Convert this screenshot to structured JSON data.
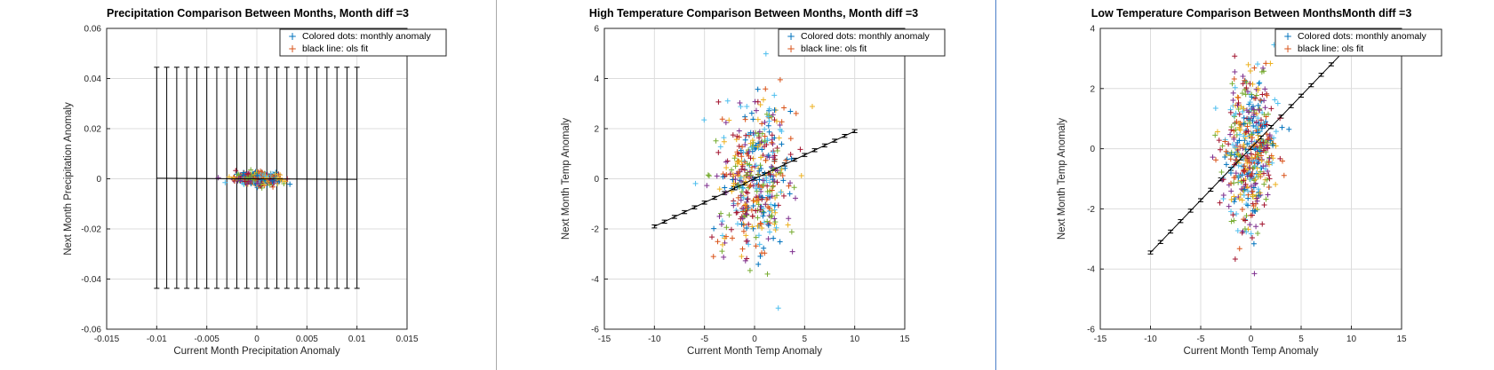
{
  "colors": {
    "series_palette": [
      "#0072BD",
      "#D95319",
      "#EDB120",
      "#7E2F8E",
      "#77AC30",
      "#4DBEEE",
      "#A2142F"
    ],
    "fit_line": "#000000",
    "grid": "#dcdcdc",
    "divider": "#a9a9a9",
    "window_edge_accent": "#4a7fc8"
  },
  "chart_data": [
    {
      "type": "scatter",
      "title": "Precipitation Comparison Between Months, Month diff =3",
      "xlabel": "Current Month Precipitation Anomaly",
      "ylabel": "Next Month Precipitation Anomaly",
      "xlim": [
        -0.015,
        0.015
      ],
      "ylim": [
        -0.06,
        0.06
      ],
      "xticks": [
        "-0.015",
        "-0.01",
        "-0.005",
        "0",
        "0.005",
        "0.01",
        "0.015"
      ],
      "yticks": [
        "0.06",
        "0.04",
        "0.02",
        "0",
        "-0.02",
        "-0.04",
        "-0.06"
      ],
      "grid": true,
      "legend": {
        "placement": "top-right",
        "entries": [
          "Colored dots: monthly anomaly",
          "black line: ols fit"
        ]
      },
      "scatter_cloud": {
        "x_center": 0,
        "x_spread": 0.0011,
        "y_center": 0,
        "y_spread": 0.0012,
        "count": 420
      },
      "fit_line": {
        "x": [
          -0.01,
          0.01
        ],
        "y": [
          0.0002,
          -0.0002
        ]
      },
      "error_bars": {
        "x_start": -0.01,
        "x_end": 0.01,
        "count": 21,
        "upper": 0.0445,
        "lower": -0.0437
      }
    },
    {
      "type": "scatter",
      "title": "High Temperature Comparison Between Months, Month diff =3",
      "xlabel": "Current Month Temp Anomaly",
      "ylabel": "Next Month Temp Anomaly",
      "xlim": [
        -15,
        15
      ],
      "ylim": [
        -6,
        6
      ],
      "xticks": [
        "-15",
        "-10",
        "-5",
        "0",
        "5",
        "10",
        "15"
      ],
      "yticks": [
        "6",
        "4",
        "2",
        "0",
        "-2",
        "-4",
        "-6"
      ],
      "grid": true,
      "legend": {
        "placement": "top-right",
        "entries": [
          "Colored dots: monthly anomaly",
          "black line: ols fit"
        ]
      },
      "scatter_cloud": {
        "x_center": 0,
        "x_spread": 1.9,
        "y_center": 0,
        "y_spread": 1.5,
        "count": 460
      },
      "fit_line": {
        "x": [
          -10,
          10
        ],
        "y": [
          -1.9,
          1.9
        ]
      },
      "error_bars": {
        "x_start": -10,
        "x_end": 10,
        "count": 21,
        "half_width": 0.06
      }
    },
    {
      "type": "scatter",
      "title": "Low Temperature Comparison Between MonthsMonth diff =3",
      "xlabel": "Current Month Temp Anomaly",
      "ylabel": "Next Month Temp Anomaly",
      "xlim": [
        -15,
        15
      ],
      "ylim": [
        -6,
        4
      ],
      "xticks": [
        "-15",
        "-10",
        "-5",
        "0",
        "5",
        "10",
        "15"
      ],
      "yticks": [
        "4",
        "2",
        "0",
        "-2",
        "-4",
        "-6"
      ],
      "grid": true,
      "legend": {
        "placement": "top-right",
        "entries": [
          "Colored dots: monthly anomaly",
          "black line: ols fit"
        ]
      },
      "scatter_cloud": {
        "x_center": 0,
        "x_spread": 1.3,
        "y_center": 0,
        "y_spread": 1.3,
        "count": 480
      },
      "fit_line": {
        "x": [
          -10,
          10
        ],
        "y": [
          -3.45,
          3.5
        ]
      },
      "error_bars": {
        "x_start": -10,
        "x_end": 10,
        "count": 21,
        "half_width": 0.05
      }
    }
  ]
}
